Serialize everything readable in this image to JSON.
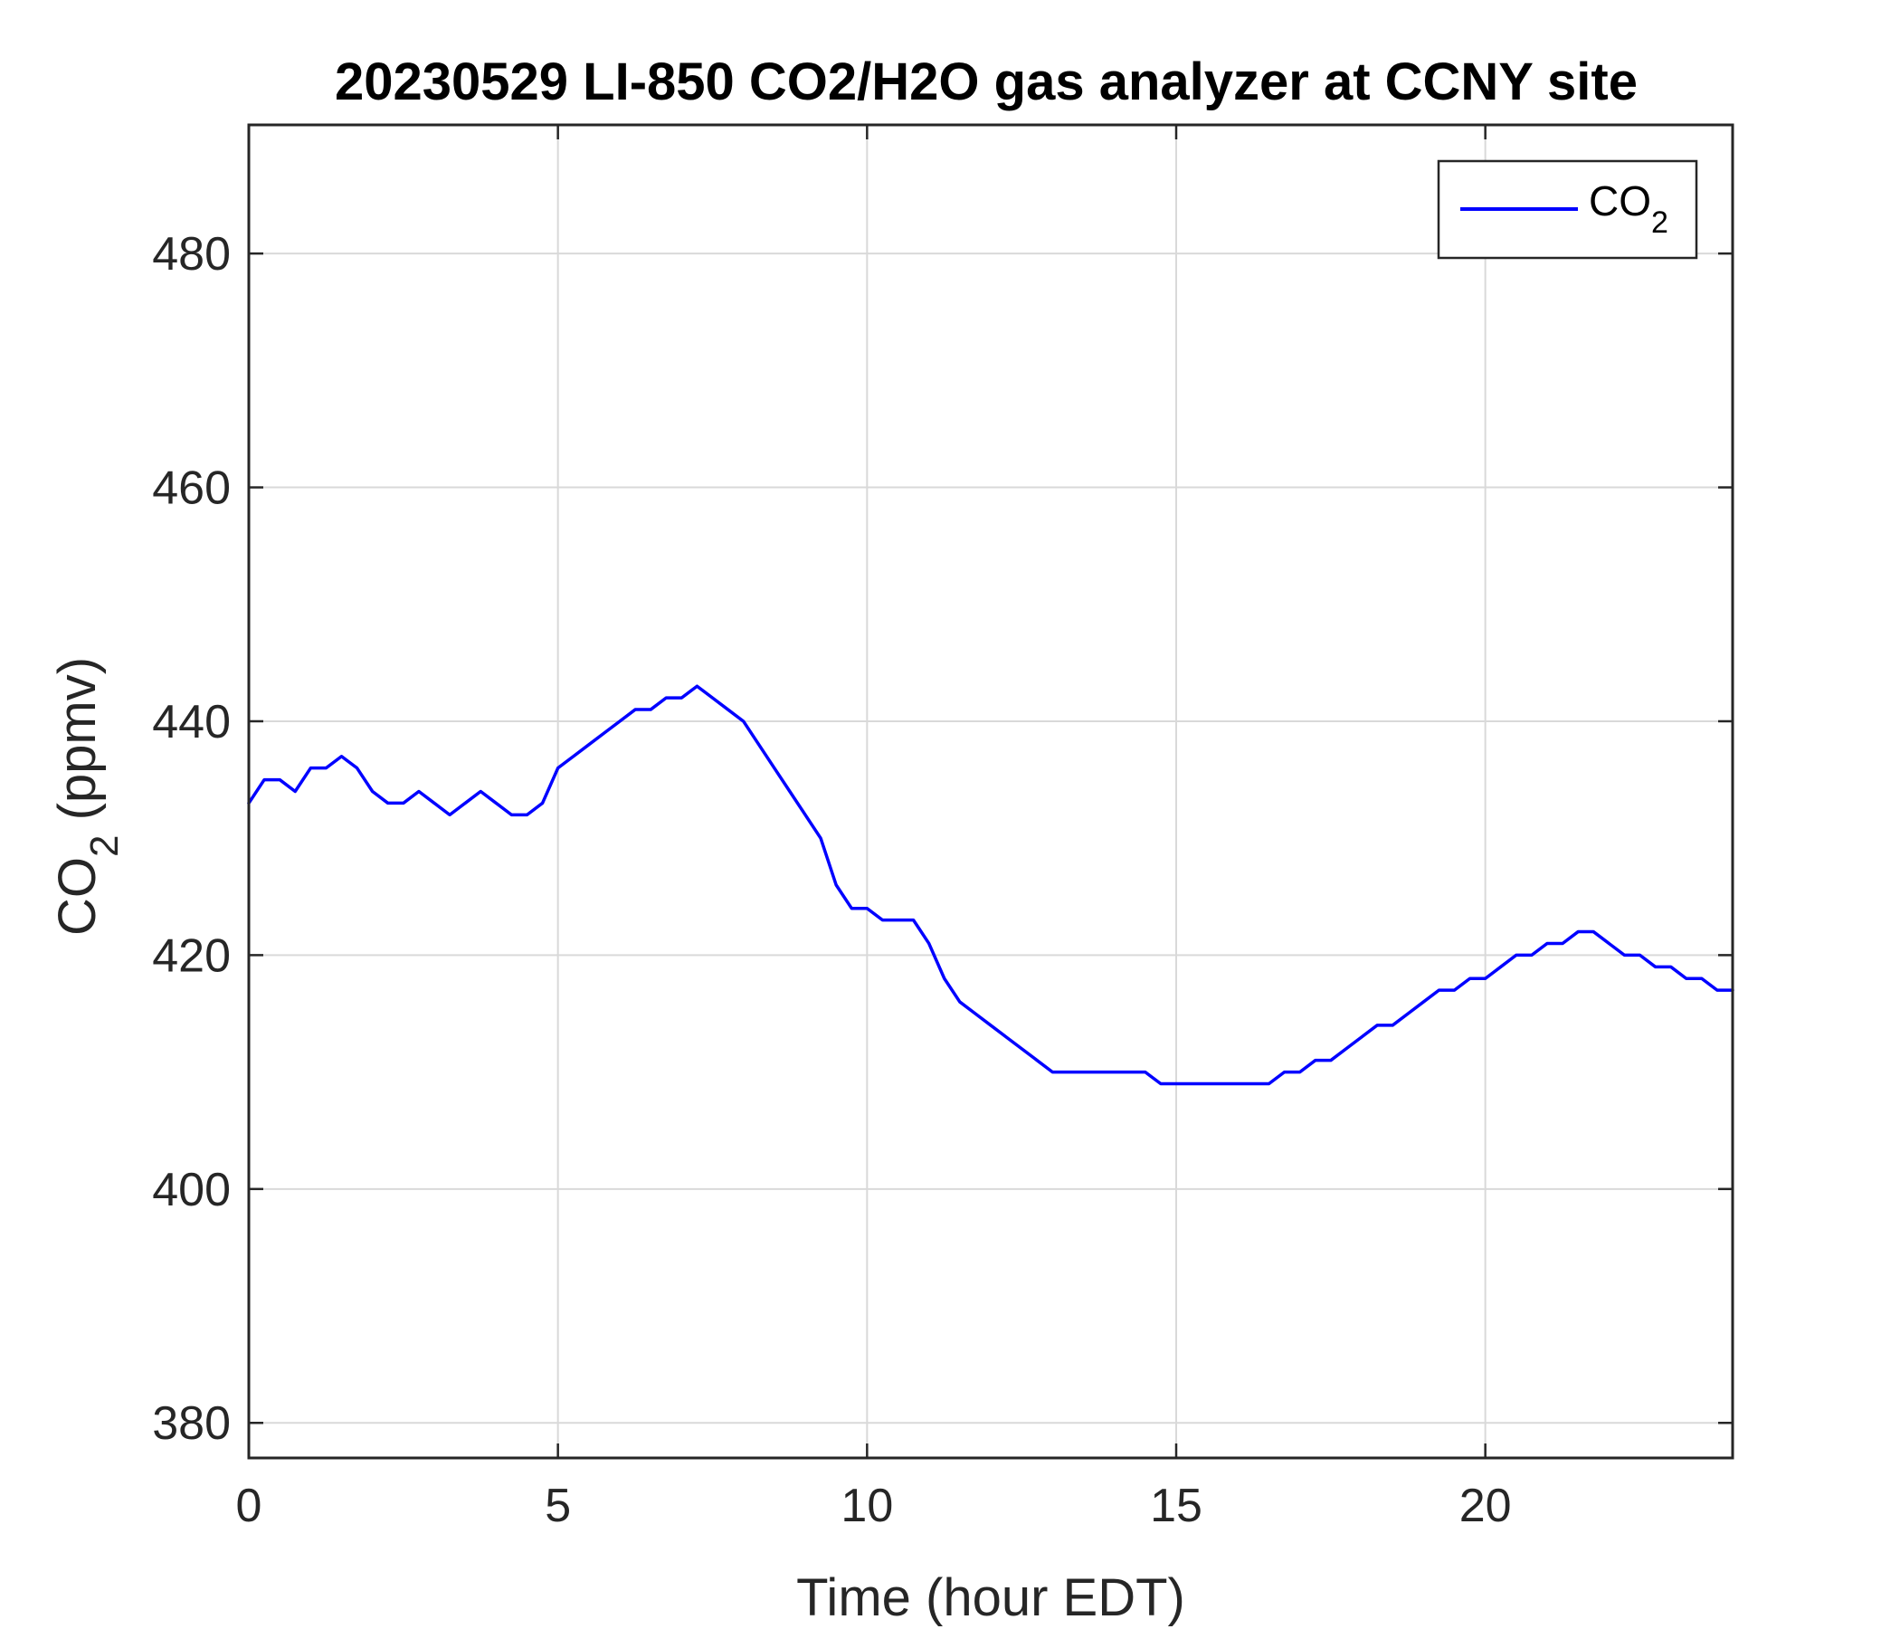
{
  "chart_data": {
    "type": "line",
    "title": "20230529 LI-850 CO2/H2O gas analyzer at CCNY site",
    "xlabel": "Time (hour EDT)",
    "ylabel": {
      "base": "CO",
      "subscript": "2",
      "suffix": " (ppmv)"
    },
    "xlim": [
      0,
      24
    ],
    "ylim": [
      377,
      491
    ],
    "x_ticks": [
      0,
      5,
      10,
      15,
      20
    ],
    "x_tick_labels": [
      "0",
      "5",
      "10",
      "15",
      "20"
    ],
    "y_ticks": [
      380,
      400,
      420,
      440,
      460,
      480
    ],
    "y_tick_labels": [
      "380",
      "400",
      "420",
      "440",
      "460",
      "480"
    ],
    "grid": true,
    "legend_position": "top-right",
    "series": [
      {
        "name": "CO2",
        "legend_label": {
          "base": "CO",
          "subscript": "2"
        },
        "color": "#0000ff",
        "x": [
          0.0,
          0.25,
          0.5,
          0.75,
          1.0,
          1.25,
          1.5,
          1.75,
          2.0,
          2.25,
          2.5,
          2.75,
          3.0,
          3.25,
          3.5,
          3.75,
          4.0,
          4.25,
          4.5,
          4.75,
          5.0,
          5.25,
          5.5,
          5.75,
          6.0,
          6.25,
          6.5,
          6.75,
          7.0,
          7.25,
          7.5,
          7.75,
          8.0,
          8.25,
          8.5,
          8.75,
          9.0,
          9.25,
          9.5,
          9.75,
          10.0,
          10.25,
          10.5,
          10.75,
          11.0,
          11.25,
          11.5,
          11.75,
          12.0,
          12.25,
          12.5,
          12.75,
          13.0,
          13.25,
          13.5,
          13.75,
          14.0,
          14.25,
          14.5,
          14.75,
          15.0,
          15.25,
          15.5,
          15.75,
          16.0,
          16.25,
          16.5,
          16.75,
          17.0,
          17.25,
          17.5,
          17.75,
          18.0,
          18.25,
          18.5,
          18.75,
          19.0,
          19.25,
          19.5,
          19.75,
          20.0,
          20.25,
          20.5,
          20.75,
          21.0,
          21.25,
          21.5,
          21.75,
          22.0,
          22.25,
          22.5,
          22.75,
          23.0,
          23.25,
          23.5,
          23.75,
          24.0
        ],
        "values": [
          433,
          435,
          435,
          434,
          436,
          436,
          437,
          436,
          434,
          433,
          433,
          434,
          433,
          432,
          433,
          434,
          433,
          432,
          432,
          433,
          436,
          437,
          438,
          439,
          440,
          441,
          441,
          442,
          442,
          443,
          442,
          441,
          440,
          438,
          436,
          434,
          432,
          430,
          426,
          424,
          424,
          423,
          423,
          423,
          421,
          418,
          416,
          415,
          414,
          413,
          412,
          411,
          410,
          410,
          410,
          410,
          410,
          410,
          410,
          409,
          409,
          409,
          409,
          409,
          409,
          409,
          409,
          410,
          410,
          411,
          411,
          412,
          413,
          414,
          414,
          415,
          416,
          417,
          417,
          418,
          418,
          419,
          420,
          420,
          421,
          421,
          422,
          422,
          421,
          420,
          420,
          419,
          419,
          418,
          418,
          417,
          417
        ]
      }
    ]
  }
}
